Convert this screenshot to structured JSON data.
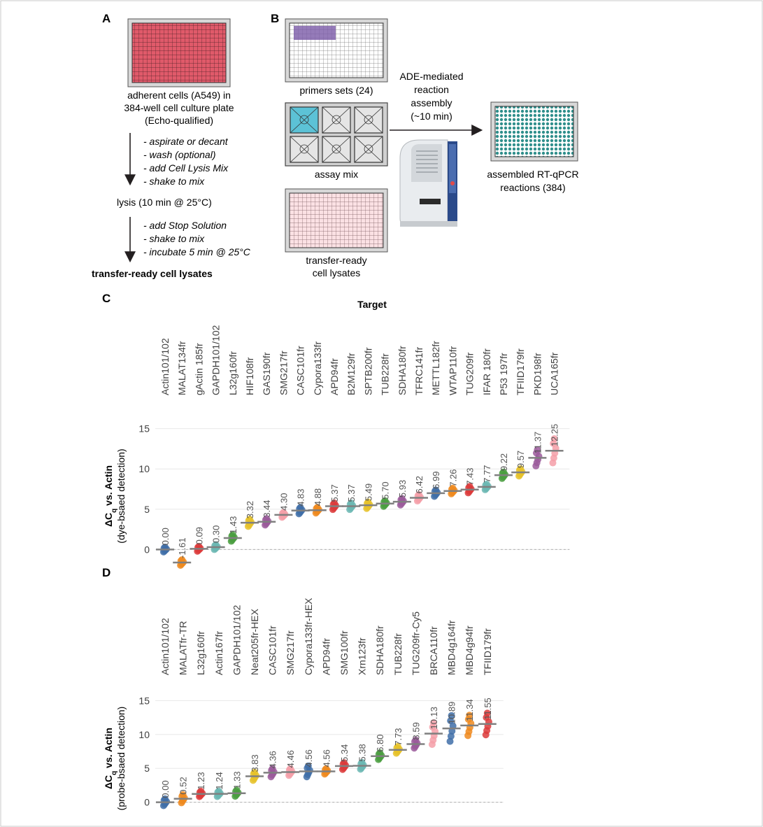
{
  "panelA": {
    "letter": "A",
    "plate_caption": [
      "adherent cells (A549) in",
      "384-well cell culture plate",
      "(Echo-qualified)"
    ],
    "steps1": [
      "- aspirate or decant",
      "- wash (optional)",
      "- add Cell Lysis Mix",
      "- shake to mix"
    ],
    "lysis": "lysis (10 min @ 25°C)",
    "steps2": [
      "- add Stop Solution",
      "- shake to mix",
      "- incubate 5 min @ 25°C"
    ],
    "final": "transfer-ready cell lysates"
  },
  "panelB": {
    "letter": "B",
    "primers": "primers sets (24)",
    "assay": "assay mix",
    "lysates": [
      "transfer-ready",
      "cell lysates"
    ],
    "ade": [
      "ADE-mediated",
      "reaction",
      "assembly",
      "(~10 min)"
    ],
    "assembled": [
      "assembled RT-qPCR",
      "reactions (384)"
    ]
  },
  "panelC": {
    "letter": "C",
    "title": "Target"
  },
  "panelD": {
    "letter": "D"
  },
  "colors": {
    "grid": "#e8e8e8",
    "mean": "#808080",
    "zero": "#b0b0b0",
    "palette": [
      "#3f6fa8",
      "#ee8a1e",
      "#dc3b3b",
      "#6bb7b3",
      "#4a9e3f",
      "#e6c229",
      "#9b5a9b",
      "#f49fa8"
    ]
  },
  "chart_data": [
    {
      "type": "scatter",
      "panel": "C",
      "title": "Target",
      "ylabel": "ΔCq vs. Actin",
      "ylabel_sub": "(dye-bsaed detection)",
      "ylim": [
        -3,
        18
      ],
      "yticks": [
        0,
        5,
        10,
        15
      ],
      "categories": [
        "Actin101/102",
        "MALAT134fr",
        "gActin 185fr",
        "GAPDH101/102",
        "L32g160fr",
        "HIF108fr",
        "GAS190fr",
        "SMG217fr",
        "CASC101fr",
        "Cypora133fr",
        "APD94fr",
        "B2M129fr",
        "SPTB200fr",
        "TUB228fr",
        "SDHA180fr",
        "TFRC141fr",
        "METTL182fr",
        "WTAP110fr",
        "TUG209fr",
        "IFAR 180fr",
        "P53 197fr",
        "TFIID179fr",
        "PKD198fr",
        "UCA165fr"
      ],
      "values": [
        0.0,
        -1.61,
        0.09,
        0.3,
        1.43,
        3.32,
        3.44,
        4.3,
        4.83,
        4.88,
        5.37,
        5.37,
        5.49,
        5.7,
        5.93,
        6.42,
        6.99,
        7.26,
        7.43,
        7.77,
        9.22,
        9.57,
        11.37,
        12.25
      ],
      "value_labels": [
        "0.00",
        "-1.61",
        "0.09",
        "0.30",
        "1.43",
        "3.32",
        "3.44",
        "4.30",
        "4.83",
        "4.88",
        "5.37",
        "5.37",
        "5.49",
        "5.70",
        "5.93",
        "6.42",
        "6.99",
        "7.26",
        "7.43",
        "7.77",
        "9.22",
        "9.57",
        "11.37",
        "12.25"
      ],
      "spread": [
        0.3,
        0.35,
        0.3,
        0.3,
        0.4,
        0.45,
        0.4,
        0.3,
        0.4,
        0.35,
        0.4,
        0.4,
        0.4,
        0.35,
        0.4,
        0.4,
        0.4,
        0.35,
        0.4,
        0.35,
        0.4,
        0.45,
        1.0,
        1.5
      ],
      "colors": [
        0,
        1,
        2,
        3,
        4,
        5,
        6,
        7,
        0,
        1,
        2,
        3,
        5,
        4,
        6,
        7,
        0,
        1,
        2,
        3,
        4,
        5,
        6,
        7
      ],
      "grid": true
    },
    {
      "type": "scatter",
      "panel": "D",
      "ylabel": "ΔCq vs. Actin",
      "ylabel_sub": "(probe-bsaed detection)",
      "ylim": [
        -2,
        17
      ],
      "yticks": [
        0,
        5,
        10,
        15
      ],
      "categories": [
        "Actin101/102",
        "MALATfr-TR",
        "L32g160fr",
        "Actin167fr",
        "GAPDH101/102",
        "Neat205fr-HEX",
        "CASC101fr",
        "SMG217fr",
        "Cypora133fr-HEX",
        "APD94fr",
        "SMG100fr",
        "Xrn123fr",
        "SDHA180fr",
        "TUB228fr",
        "TUG209fr-Cy5",
        "BRCA110fr",
        "MBD4g164fr",
        "MBD4g94fr",
        "TFIID179fr"
      ],
      "values": [
        0.0,
        0.52,
        1.23,
        1.24,
        1.33,
        3.83,
        4.36,
        4.46,
        4.56,
        4.56,
        5.34,
        5.38,
        6.8,
        7.73,
        8.59,
        10.13,
        10.89,
        11.34,
        11.55
      ],
      "value_labels": [
        "0.00",
        "0.52",
        "1.23",
        "1.24",
        "1.33",
        "3.83",
        "4.36",
        "4.46",
        "4.56",
        "4.56",
        "5.34",
        "5.38",
        "6.80",
        "7.73",
        "8.59",
        "10.13",
        "10.89",
        "11.34",
        "11.55"
      ],
      "spread": [
        0.5,
        0.6,
        0.4,
        0.4,
        0.45,
        0.6,
        0.6,
        0.5,
        0.8,
        0.4,
        0.5,
        0.5,
        0.5,
        0.5,
        0.6,
        1.6,
        1.9,
        1.5,
        1.6
      ],
      "colors": [
        0,
        1,
        2,
        3,
        4,
        5,
        6,
        7,
        0,
        1,
        2,
        3,
        4,
        5,
        6,
        7,
        0,
        1,
        2
      ],
      "grid": true
    }
  ]
}
